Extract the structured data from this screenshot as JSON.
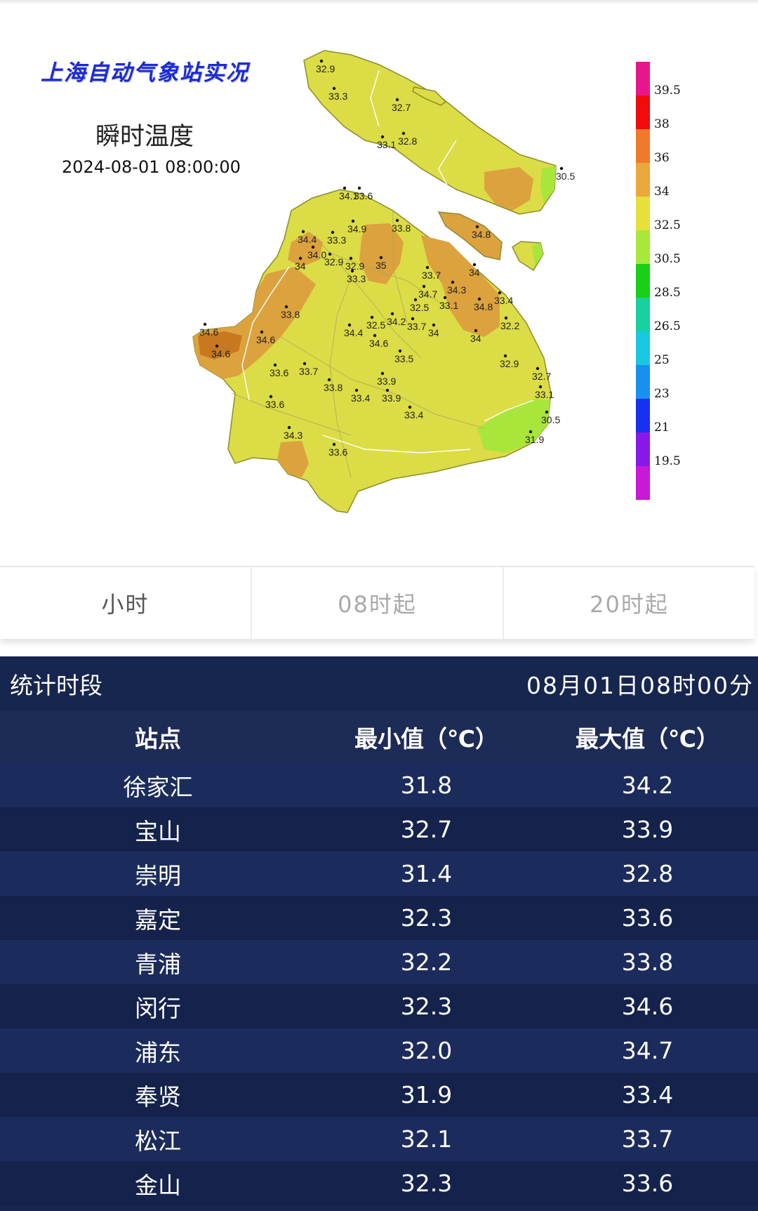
{
  "map": {
    "title": "上海自动气象站实况",
    "subtitle": "瞬时温度",
    "datetime": "2024-08-01 08:00:00",
    "legend": {
      "labels": [
        "39.5",
        "38",
        "36",
        "34",
        "32.5",
        "30.5",
        "28.5",
        "26.5",
        "25",
        "23",
        "21",
        "19.5"
      ],
      "colors": [
        "#e8168c",
        "#f00c0c",
        "#f07a2a",
        "#e8a83a",
        "#e8e03a",
        "#a8e83a",
        "#18d018",
        "#18d0a0",
        "#18c8e0",
        "#1890f0",
        "#1830f0",
        "#8818e8",
        "#c818d8"
      ]
    },
    "fill_colors": {
      "base": "#dcdc46",
      "warm": "#dca23e",
      "cool": "#a8e63c",
      "outline": "#8c8c2a"
    },
    "stations": [
      "32.9",
      "33.3",
      "32.7",
      "33.1",
      "32.8",
      "30.5",
      "34.1",
      "33.6",
      "34.4",
      "33.3",
      "34.9",
      "33.8",
      "34.8",
      "34.0",
      "32.9",
      "32.9",
      "34",
      "33.3",
      "35",
      "33.7",
      "34",
      "34.3",
      "34.7",
      "33.1",
      "32.5",
      "34.8",
      "33.4",
      "33.8",
      "32.5",
      "34.2",
      "33.7",
      "32.2",
      "34.4",
      "34",
      "34",
      "34.6",
      "34.6",
      "34.6",
      "34.6",
      "33.5",
      "32.9",
      "33.6",
      "33.7",
      "32.7",
      "33.8",
      "33.9",
      "33.1",
      "33.4",
      "33.9",
      "33.6",
      "33.4",
      "30.5",
      "34.3",
      "31.9",
      "33.6"
    ]
  },
  "tabs": [
    {
      "label": "小时",
      "active": true
    },
    {
      "label": "08时起",
      "active": false
    },
    {
      "label": "20时起",
      "active": false
    }
  ],
  "table": {
    "period_label": "统计时段",
    "period_value": "08月01日08时00分",
    "headers": [
      "站点",
      "最小值（℃）",
      "最大值（℃）"
    ],
    "rows": [
      [
        "徐家汇",
        "31.8",
        "34.2"
      ],
      [
        "宝山",
        "32.7",
        "33.9"
      ],
      [
        "崇明",
        "31.4",
        "32.8"
      ],
      [
        "嘉定",
        "32.3",
        "33.6"
      ],
      [
        "青浦",
        "32.2",
        "33.8"
      ],
      [
        "闵行",
        "32.3",
        "34.6"
      ],
      [
        "浦东",
        "32.0",
        "34.7"
      ],
      [
        "奉贤",
        "31.9",
        "33.4"
      ],
      [
        "松江",
        "32.1",
        "33.7"
      ],
      [
        "金山",
        "32.3",
        "33.6"
      ]
    ]
  }
}
